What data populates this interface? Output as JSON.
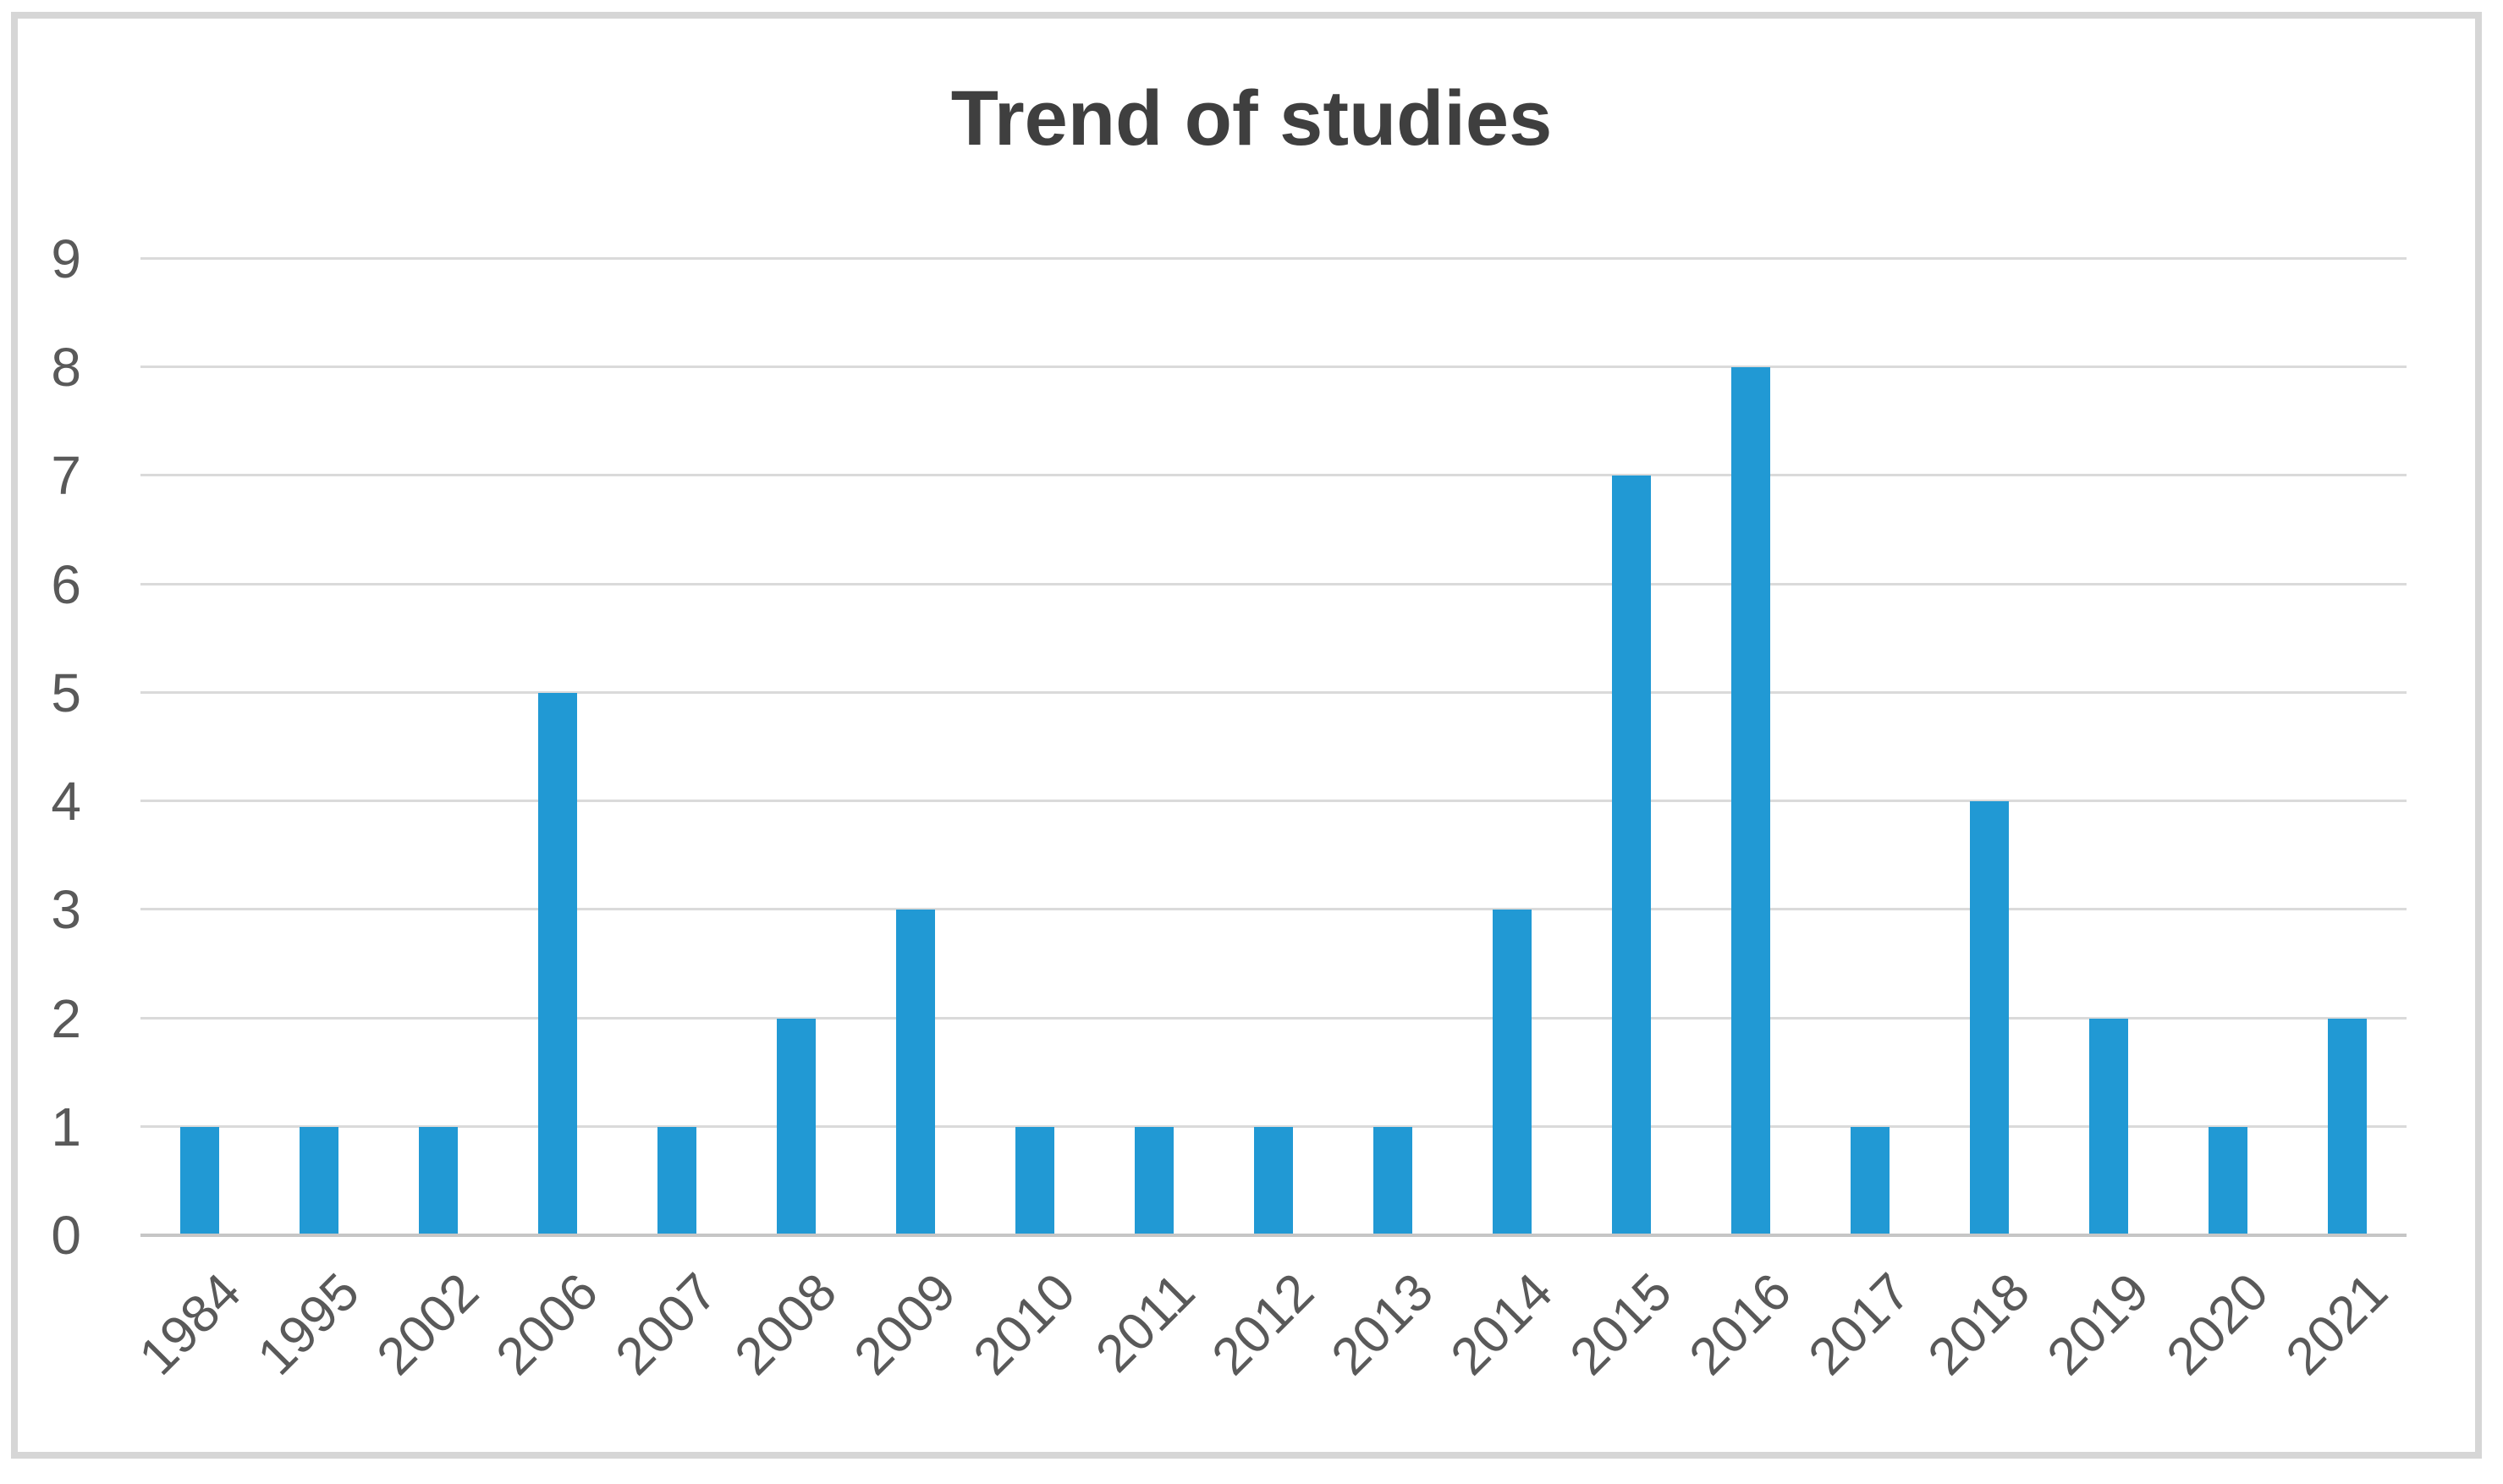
{
  "chart_data": {
    "type": "bar",
    "title": "Trend of studies",
    "categories": [
      "1984",
      "1995",
      "2002",
      "2006",
      "2007",
      "2008",
      "2009",
      "2010",
      "2011",
      "2012",
      "2013",
      "2014",
      "2015",
      "2016",
      "2017",
      "2018",
      "2019",
      "2020",
      "2021"
    ],
    "values": [
      1,
      1,
      1,
      5,
      1,
      2,
      3,
      1,
      1,
      1,
      1,
      3,
      7,
      8,
      1,
      4,
      2,
      1,
      2
    ],
    "xlabel": "",
    "ylabel": "",
    "y_ticks": [
      0,
      1,
      2,
      3,
      4,
      5,
      6,
      7,
      8,
      9
    ],
    "ylim": [
      0,
      9
    ],
    "grid": "horizontal",
    "legend_position": "none",
    "x_tick_rotation_deg": 45,
    "colors": {
      "bar": "#2199d4",
      "title": "#3f3f3f",
      "tick_labels": "#595959",
      "gridline": "#dadada",
      "axis_line": "#c6c6c6",
      "frame_border": "#d6d6d6",
      "background": "#ffffff"
    }
  }
}
